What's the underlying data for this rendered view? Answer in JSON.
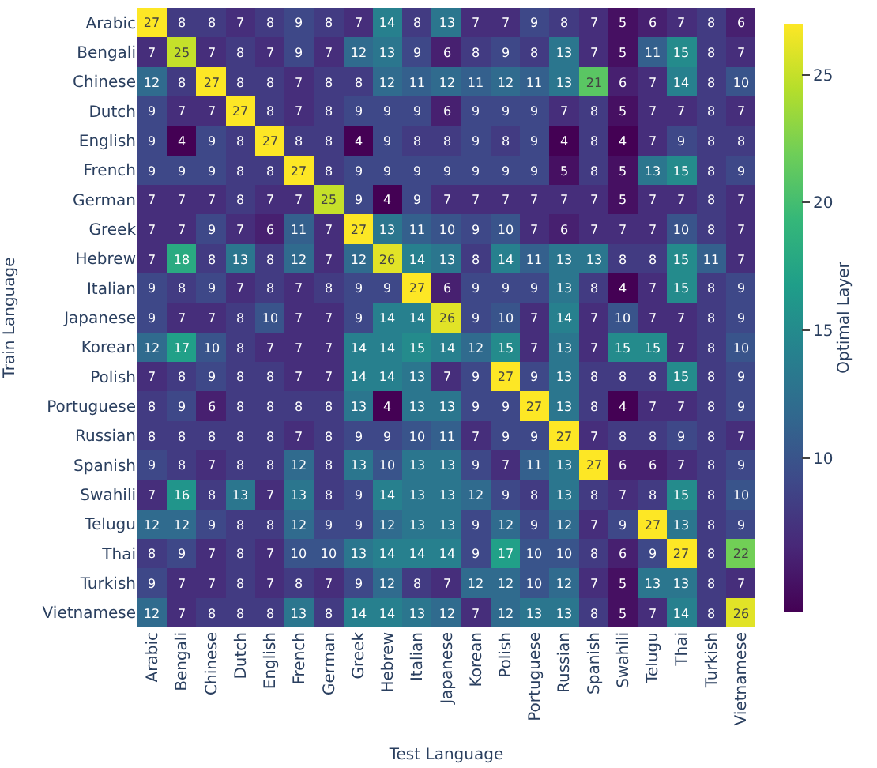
{
  "chart_data": {
    "type": "heatmap",
    "xlabel": "Test Language",
    "ylabel": "Train Language",
    "clabel": "Optimal Layer",
    "categories": [
      "Arabic",
      "Bengali",
      "Chinese",
      "Dutch",
      "English",
      "French",
      "German",
      "Greek",
      "Hebrew",
      "Italian",
      "Japanese",
      "Korean",
      "Polish",
      "Portuguese",
      "Russian",
      "Spanish",
      "Swahili",
      "Telugu",
      "Thai",
      "Turkish",
      "Vietnamese"
    ],
    "y_categories": [
      "Arabic",
      "Bengali",
      "Chinese",
      "Dutch",
      "English",
      "French",
      "German",
      "Greek",
      "Hebrew",
      "Italian",
      "Japanese",
      "Korean",
      "Polish",
      "Portuguese",
      "Russian",
      "Spanish",
      "Swahili",
      "Telugu",
      "Thai",
      "Turkish",
      "Vietnamese"
    ],
    "cells": [
      [
        27,
        8,
        8,
        7,
        8,
        9,
        8,
        7,
        14,
        8,
        13,
        7,
        7,
        9,
        8,
        7,
        5,
        6,
        7,
        8,
        6
      ],
      [
        7,
        25,
        7,
        8,
        7,
        9,
        7,
        12,
        13,
        9,
        6,
        8,
        9,
        8,
        13,
        7,
        5,
        11,
        15,
        8,
        7
      ],
      [
        12,
        8,
        27,
        8,
        8,
        7,
        8,
        8,
        12,
        11,
        12,
        11,
        12,
        11,
        13,
        21,
        6,
        7,
        14,
        8,
        10
      ],
      [
        9,
        7,
        7,
        27,
        8,
        7,
        8,
        9,
        9,
        9,
        6,
        9,
        9,
        9,
        7,
        8,
        5,
        7,
        7,
        8,
        7
      ],
      [
        9,
        4,
        9,
        8,
        27,
        8,
        8,
        4,
        9,
        8,
        8,
        9,
        8,
        9,
        4,
        8,
        4,
        7,
        9,
        8,
        8
      ],
      [
        9,
        9,
        9,
        8,
        8,
        27,
        8,
        9,
        9,
        9,
        9,
        9,
        9,
        9,
        5,
        8,
        5,
        13,
        15,
        8,
        9
      ],
      [
        7,
        7,
        7,
        8,
        7,
        7,
        25,
        9,
        4,
        9,
        7,
        7,
        7,
        7,
        7,
        7,
        5,
        7,
        7,
        8,
        7
      ],
      [
        7,
        7,
        9,
        7,
        6,
        11,
        7,
        27,
        13,
        11,
        10,
        9,
        10,
        7,
        6,
        7,
        7,
        7,
        10,
        8,
        7
      ],
      [
        7,
        18,
        8,
        13,
        8,
        12,
        7,
        12,
        26,
        14,
        13,
        8,
        14,
        11,
        13,
        13,
        8,
        8,
        15,
        11,
        7
      ],
      [
        9,
        8,
        9,
        7,
        8,
        7,
        8,
        9,
        9,
        27,
        6,
        9,
        9,
        9,
        13,
        8,
        4,
        7,
        15,
        8,
        9
      ],
      [
        9,
        7,
        7,
        8,
        10,
        7,
        7,
        9,
        14,
        14,
        26,
        9,
        10,
        7,
        14,
        7,
        10,
        7,
        7,
        8,
        9
      ],
      [
        12,
        17,
        10,
        8,
        7,
        7,
        7,
        14,
        14,
        15,
        14,
        12,
        15,
        7,
        13,
        7,
        15,
        15,
        7,
        8,
        10
      ],
      [
        7,
        8,
        9,
        8,
        8,
        7,
        7,
        14,
        14,
        13,
        7,
        9,
        27,
        9,
        13,
        8,
        8,
        8,
        15,
        8,
        9
      ],
      [
        8,
        9,
        6,
        8,
        8,
        8,
        8,
        13,
        4,
        13,
        13,
        9,
        9,
        27,
        13,
        8,
        4,
        7,
        7,
        8,
        9
      ],
      [
        8,
        8,
        8,
        8,
        8,
        7,
        8,
        9,
        9,
        10,
        11,
        7,
        9,
        9,
        27,
        7,
        8,
        8,
        9,
        8,
        7
      ],
      [
        9,
        8,
        7,
        8,
        8,
        12,
        8,
        13,
        10,
        13,
        13,
        9,
        7,
        11,
        13,
        27,
        6,
        6,
        7,
        8,
        9
      ],
      [
        7,
        16,
        8,
        13,
        7,
        13,
        8,
        9,
        14,
        13,
        13,
        12,
        9,
        8,
        13,
        8,
        7,
        8,
        15,
        8,
        10
      ],
      [
        12,
        12,
        9,
        8,
        8,
        12,
        9,
        9,
        12,
        13,
        13,
        9,
        12,
        9,
        12,
        7,
        9,
        27,
        13,
        8,
        9
      ],
      [
        8,
        9,
        7,
        8,
        7,
        10,
        10,
        13,
        14,
        14,
        14,
        9,
        17,
        10,
        10,
        8,
        6,
        9,
        27,
        8,
        22
      ],
      [
        9,
        7,
        7,
        8,
        7,
        8,
        7,
        9,
        12,
        8,
        7,
        12,
        12,
        10,
        12,
        7,
        5,
        13,
        13,
        8,
        7
      ],
      [
        12,
        7,
        8,
        8,
        8,
        13,
        8,
        14,
        14,
        13,
        12,
        7,
        12,
        13,
        13,
        8,
        5,
        7,
        14,
        8,
        26
      ]
    ],
    "clim": [
      4,
      27
    ],
    "cticks": [
      10,
      15,
      20,
      25
    ],
    "data_labels": true
  }
}
